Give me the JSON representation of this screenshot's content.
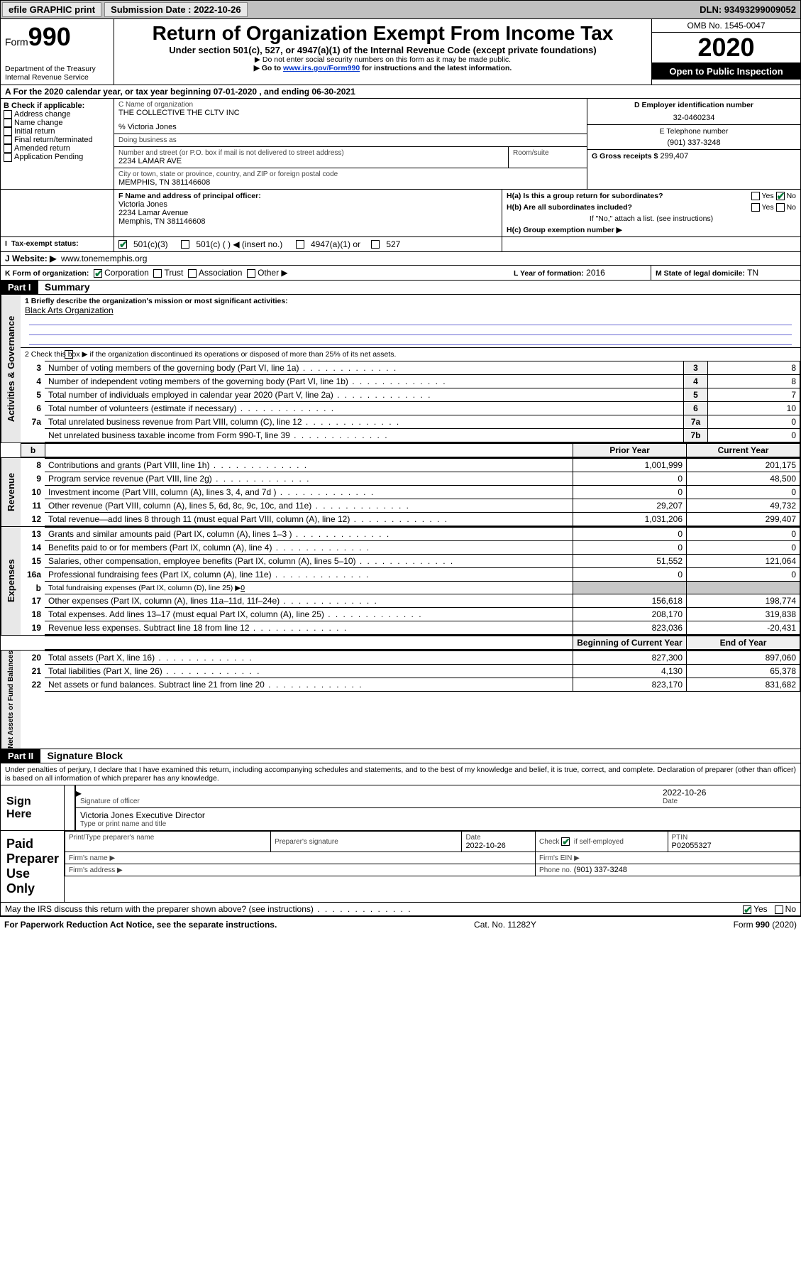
{
  "colors": {
    "link": "#0033cc",
    "check": "#0a7a3a",
    "sidebar_bg": "#e8e8e8",
    "blackbox_bg": "#000000",
    "mission_line": "#6a6ad4",
    "grayfill": "#c8c8c8"
  },
  "topbar": {
    "efile_label": "efile GRAPHIC print",
    "submission_label": "Submission Date : 2022-10-26",
    "dln_label": "DLN: 93493299009052"
  },
  "header": {
    "form_word": "Form",
    "form_number": "990",
    "dept1": "Department of the Treasury",
    "dept2": "Internal Revenue Service",
    "title": "Return of Organization Exempt From Income Tax",
    "sub1": "Under section 501(c), 527, or 4947(a)(1) of the Internal Revenue Code (except private foundations)",
    "sub2": "Do not enter social security numbers on this form as it may be made public.",
    "sub3_pre": "Go to ",
    "sub3_link": "www.irs.gov/Form990",
    "sub3_post": " for instructions and the latest information.",
    "omb": "OMB No. 1545-0047",
    "year": "2020",
    "inspection": "Open to Public Inspection"
  },
  "line_a": "For the 2020 calendar year, or tax year beginning 07-01-2020   , and ending 06-30-2021",
  "box_b": {
    "heading": "B Check if applicable:",
    "opts": [
      "Address change",
      "Name change",
      "Initial return",
      "Final return/terminated",
      "Amended return",
      "Application Pending"
    ]
  },
  "box_c": {
    "label_name": "C Name of organization",
    "org_name": "THE COLLECTIVE THE CLTV INC",
    "pct_line": "% Victoria Jones",
    "dba_label": "Doing business as",
    "addr_label": "Number and street (or P.O. box if mail is not delivered to street address)",
    "room_label": "Room/suite",
    "addr": "2234 LAMAR AVE",
    "city_label": "City or town, state or province, country, and ZIP or foreign postal code",
    "city": "MEMPHIS, TN  381146608"
  },
  "box_d": {
    "label": "D Employer identification number",
    "value": "32-0460234"
  },
  "box_e": {
    "label": "E Telephone number",
    "value": "(901) 337-3248"
  },
  "box_g": {
    "label": "G Gross receipts $",
    "value": "299,407"
  },
  "box_f": {
    "label": "F Name and address of principal officer:",
    "name": "Victoria Jones",
    "addr1": "2234 Lamar Avenue",
    "addr2": "Memphis, TN  381146608"
  },
  "box_h": {
    "ha_label": "H(a)  Is this a group return for subordinates?",
    "ha_yes": "Yes",
    "ha_no": "No",
    "hb_label": "H(b)  Are all subordinates included?",
    "hb_yes": "Yes",
    "hb_no": "No",
    "hb_note": "If \"No,\" attach a list. (see instructions)",
    "hc_label": "H(c)  Group exemption number ▶"
  },
  "box_i": {
    "label": "Tax-exempt status:",
    "opt1": "501(c)(3)",
    "opt2": "501(c) (  ) ◀ (insert no.)",
    "opt3": "4947(a)(1) or",
    "opt4": "527"
  },
  "box_j": {
    "label": "J   Website: ▶",
    "value": "www.tonememphis.org"
  },
  "box_k": {
    "label": "K Form of organization:",
    "opts": [
      "Corporation",
      "Trust",
      "Association",
      "Other ▶"
    ]
  },
  "box_l": {
    "label": "L Year of formation:",
    "value": "2016"
  },
  "box_m": {
    "label": "M State of legal domicile:",
    "value": "TN"
  },
  "part1": {
    "tag": "Part I",
    "title": "Summary",
    "q1_label": "1  Briefly describe the organization's mission or most significant activities:",
    "q1_value": "Black Arts Organization",
    "q2": "2   Check this box ▶        if the organization discontinued its operations or disposed of more than 25% of its net assets.",
    "sidebars": {
      "ag": "Activities & Governance",
      "rev": "Revenue",
      "exp": "Expenses",
      "nab": "Net Assets or Fund Balances"
    },
    "rows_ag": [
      {
        "n": "3",
        "text": "Number of voting members of the governing body (Part VI, line 1a)",
        "lab": "3",
        "val": "8"
      },
      {
        "n": "4",
        "text": "Number of independent voting members of the governing body (Part VI, line 1b)",
        "lab": "4",
        "val": "8"
      },
      {
        "n": "5",
        "text": "Total number of individuals employed in calendar year 2020 (Part V, line 2a)",
        "lab": "5",
        "val": "7"
      },
      {
        "n": "6",
        "text": "Total number of volunteers (estimate if necessary)",
        "lab": "6",
        "val": "10"
      },
      {
        "n": "7a",
        "text": "Total unrelated business revenue from Part VIII, column (C), line 12",
        "lab": "7a",
        "val": "0"
      },
      {
        "n": "",
        "text": "Net unrelated business taxable income from Form 990-T, line 39",
        "lab": "7b",
        "val": "0"
      }
    ],
    "col_headers": {
      "b": "b",
      "prior": "Prior Year",
      "current": "Current Year"
    },
    "rows_rev": [
      {
        "n": "8",
        "text": "Contributions and grants (Part VIII, line 1h)",
        "p": "1,001,999",
        "c": "201,175"
      },
      {
        "n": "9",
        "text": "Program service revenue (Part VIII, line 2g)",
        "p": "0",
        "c": "48,500"
      },
      {
        "n": "10",
        "text": "Investment income (Part VIII, column (A), lines 3, 4, and 7d )",
        "p": "0",
        "c": "0"
      },
      {
        "n": "11",
        "text": "Other revenue (Part VIII, column (A), lines 5, 6d, 8c, 9c, 10c, and 11e)",
        "p": "29,207",
        "c": "49,732"
      },
      {
        "n": "12",
        "text": "Total revenue—add lines 8 through 11 (must equal Part VIII, column (A), line 12)",
        "p": "1,031,206",
        "c": "299,407"
      }
    ],
    "rows_exp": [
      {
        "n": "13",
        "text": "Grants and similar amounts paid (Part IX, column (A), lines 1–3 )",
        "p": "0",
        "c": "0"
      },
      {
        "n": "14",
        "text": "Benefits paid to or for members (Part IX, column (A), line 4)",
        "p": "0",
        "c": "0"
      },
      {
        "n": "15",
        "text": "Salaries, other compensation, employee benefits (Part IX, column (A), lines 5–10)",
        "p": "51,552",
        "c": "121,064"
      },
      {
        "n": "16a",
        "text": "Professional fundraising fees (Part IX, column (A), line 11e)",
        "p": "0",
        "c": "0"
      }
    ],
    "row_16b": {
      "n": "b",
      "pre": "Total fundraising expenses (Part IX, column (D), line 25) ▶",
      "val": "0"
    },
    "rows_exp2": [
      {
        "n": "17",
        "text": "Other expenses (Part IX, column (A), lines 11a–11d, 11f–24e)",
        "p": "156,618",
        "c": "198,774"
      },
      {
        "n": "18",
        "text": "Total expenses. Add lines 13–17 (must equal Part IX, column (A), line 25)",
        "p": "208,170",
        "c": "319,838"
      },
      {
        "n": "19",
        "text": "Revenue less expenses. Subtract line 18 from line 12",
        "p": "823,036",
        "c": "-20,431"
      }
    ],
    "col_headers2": {
      "beg": "Beginning of Current Year",
      "end": "End of Year"
    },
    "rows_nab": [
      {
        "n": "20",
        "text": "Total assets (Part X, line 16)",
        "p": "827,300",
        "c": "897,060"
      },
      {
        "n": "21",
        "text": "Total liabilities (Part X, line 26)",
        "p": "4,130",
        "c": "65,378"
      },
      {
        "n": "22",
        "text": "Net assets or fund balances. Subtract line 21 from line 20",
        "p": "823,170",
        "c": "831,682"
      }
    ]
  },
  "part2": {
    "tag": "Part II",
    "title": "Signature Block",
    "perjury": "Under penalties of perjury, I declare that I have examined this return, including accompanying schedules and statements, and to the best of my knowledge and belief, it is true, correct, and complete. Declaration of preparer (other than officer) is based on all information of which preparer has any knowledge.",
    "sign_here": "Sign Here",
    "sig_officer": "Signature of officer",
    "sig_date": "2022-10-26",
    "date_label": "Date",
    "typed_name": "Victoria Jones  Executive Director",
    "typed_label": "Type or print name and title",
    "paid_prep": "Paid Preparer Use Only",
    "pp_name_label": "Print/Type preparer's name",
    "pp_sig_label": "Preparer's signature",
    "pp_date_label": "Date",
    "pp_date": "2022-10-26",
    "pp_check_label": "Check         if self-employed",
    "pp_ptin_label": "PTIN",
    "pp_ptin": "P02055327",
    "firm_name": "Firm's name    ▶",
    "firm_ein": "Firm's EIN ▶",
    "firm_addr": "Firm's address ▶",
    "firm_phone_label": "Phone no.",
    "firm_phone": "(901) 337-3248",
    "discuss": "May the IRS discuss this return with the preparer shown above? (see instructions)",
    "discuss_yes": "Yes",
    "discuss_no": "No"
  },
  "footer": {
    "left": "For Paperwork Reduction Act Notice, see the separate instructions.",
    "mid": "Cat. No. 11282Y",
    "right": "Form 990 (2020)"
  }
}
